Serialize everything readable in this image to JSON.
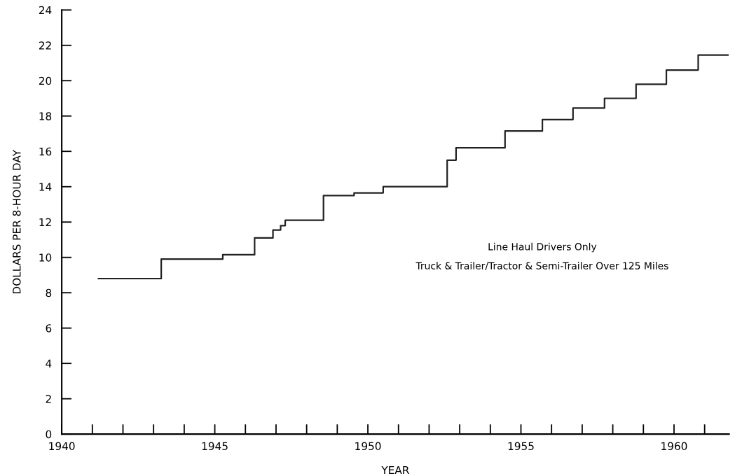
{
  "chart_data": {
    "type": "step",
    "xlabel": "YEAR",
    "ylabel": "DOLLARS PER 8-HOUR DAY",
    "x": [
      1941.2,
      1943.25,
      1945.26,
      1946.3,
      1946.9,
      1947.15,
      1947.3,
      1948.55,
      1949.55,
      1950.5,
      1952.59,
      1952.88,
      1954.48,
      1955.7,
      1956.7,
      1957.73,
      1958.76,
      1959.75,
      1960.79,
      1961.76
    ],
    "values": [
      8.8,
      9.9,
      10.15,
      11.1,
      11.55,
      11.8,
      12.1,
      13.5,
      13.65,
      14.0,
      15.5,
      16.2,
      17.15,
      17.8,
      18.45,
      19.0,
      19.8,
      20.6,
      21.45,
      21.45
    ],
    "color": "#222222",
    "xlim": [
      1940,
      1961.8
    ],
    "ylim": [
      0,
      24
    ],
    "xticks": [
      1940,
      {
        "value": 1941,
        "label": null
      },
      {
        "value": 1942,
        "label": null
      },
      {
        "value": 1943,
        "label": null
      },
      {
        "value": 1944,
        "label": null
      },
      1945,
      {
        "value": 1946,
        "label": null
      },
      {
        "value": 1947,
        "label": null
      },
      {
        "value": 1948,
        "label": null
      },
      {
        "value": 1949,
        "label": null
      },
      1950,
      {
        "value": 1951,
        "label": null
      },
      {
        "value": 1952,
        "label": null
      },
      {
        "value": 1953,
        "label": null
      },
      {
        "value": 1954,
        "label": null
      },
      1955,
      {
        "value": 1956,
        "label": null
      },
      {
        "value": 1957,
        "label": null
      },
      {
        "value": 1958,
        "label": null
      },
      {
        "value": 1959,
        "label": null
      },
      1960,
      {
        "value": 1961,
        "label": null
      }
    ],
    "yticks": [
      0,
      2,
      4,
      6,
      8,
      10,
      12,
      14,
      16,
      18,
      20,
      22,
      24
    ],
    "annotations": [
      "Line Haul Drivers Only",
      "Truck & Trailer/Tractor & Semi-Trailer Over 125 Miles"
    ],
    "grid": false,
    "legend": false
  }
}
